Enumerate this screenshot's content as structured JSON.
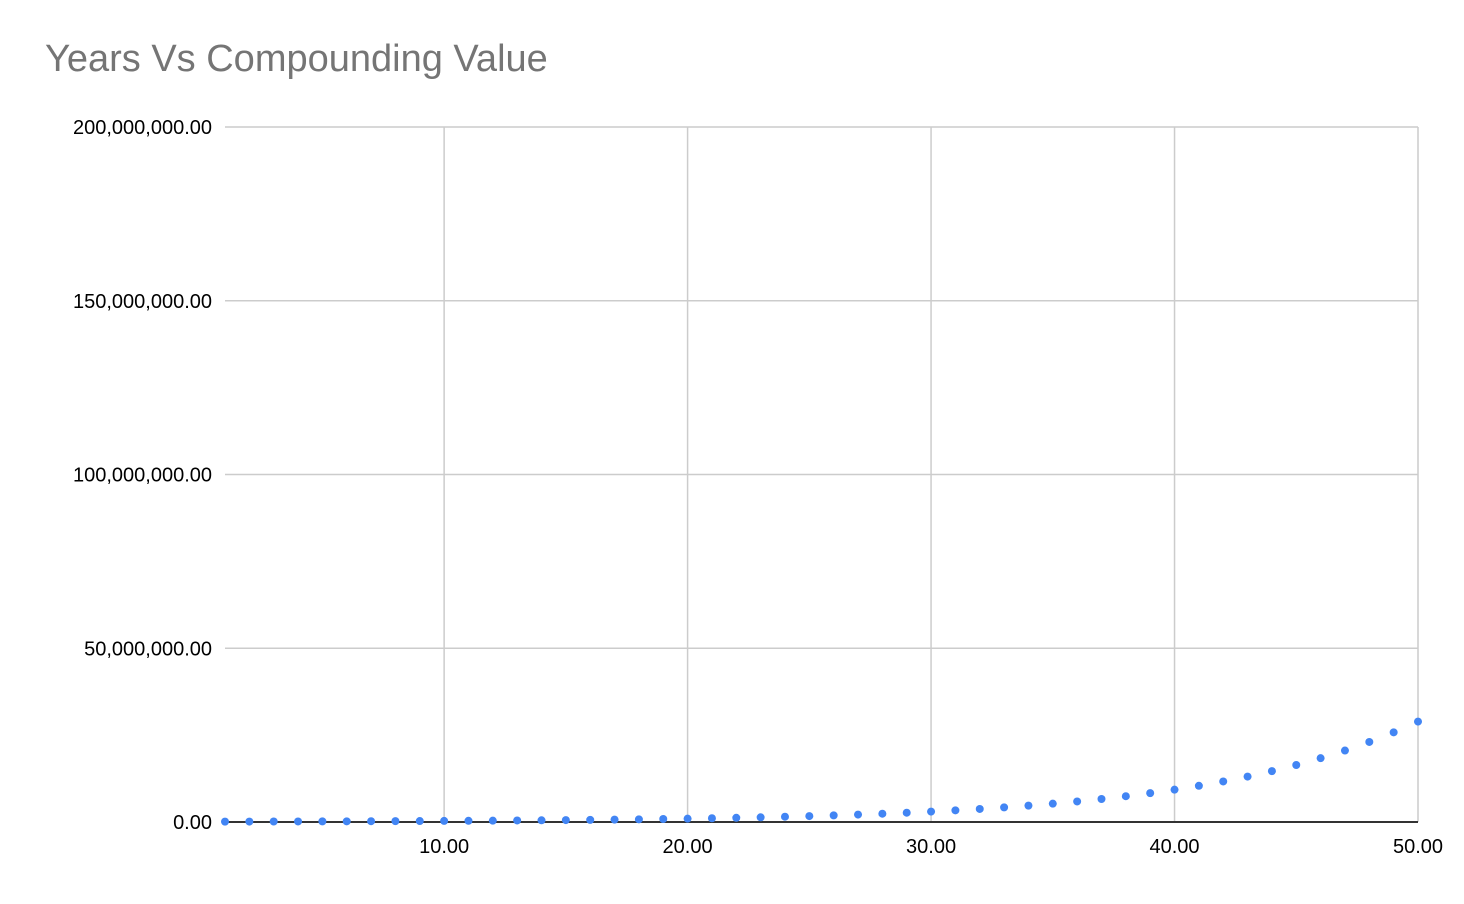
{
  "chart_data": {
    "type": "scatter",
    "title": "Years Vs Compounding Value",
    "xlabel": "",
    "ylabel": "",
    "xlim": [
      1,
      50
    ],
    "ylim": [
      0,
      200000000
    ],
    "x_ticks": [
      10,
      20,
      30,
      40,
      50
    ],
    "x_tick_labels": [
      "10.00",
      "20.00",
      "30.00",
      "40.00",
      "50.00"
    ],
    "y_ticks": [
      0,
      50000000,
      100000000,
      150000000,
      200000000
    ],
    "y_tick_labels": [
      "0.00",
      "50,000,000.00",
      "100,000,000.00",
      "150,000,000.00",
      "200,000,000.00"
    ],
    "grid": true,
    "legend": "none",
    "point_color": "#4285f4",
    "grid_color": "#cccccc",
    "axis_color": "#333333",
    "series": [
      {
        "x": [
          1,
          2,
          3,
          4,
          5,
          6,
          7,
          8,
          9,
          10,
          11,
          12,
          13,
          14,
          15,
          16,
          17,
          18,
          19,
          20,
          21,
          22,
          23,
          24,
          25,
          26,
          27,
          28,
          29,
          30,
          31,
          32,
          33,
          34,
          35,
          36,
          37,
          38,
          39,
          40,
          41,
          42,
          43,
          44,
          45,
          46,
          47,
          48,
          49,
          50
        ],
        "values": [
          112000,
          125440,
          140493,
          157352,
          176234,
          197382,
          221068,
          247596,
          277308,
          310585,
          347855,
          389598,
          436349,
          488711,
          547357,
          613039,
          686604,
          768997,
          861276,
          964629,
          1080385,
          1210031,
          1355235,
          1517863,
          1700006,
          1904007,
          2132488,
          2388387,
          2674993,
          2995992,
          3355511,
          3758173,
          4209153,
          4714252,
          5279962,
          5913557,
          6623184,
          7417966,
          8308122,
          9305097,
          10421709,
          11672314,
          13072991,
          14641750,
          16398760,
          18366611,
          20570604,
          23039076,
          25803765,
          28900217
        ]
      }
    ]
  }
}
